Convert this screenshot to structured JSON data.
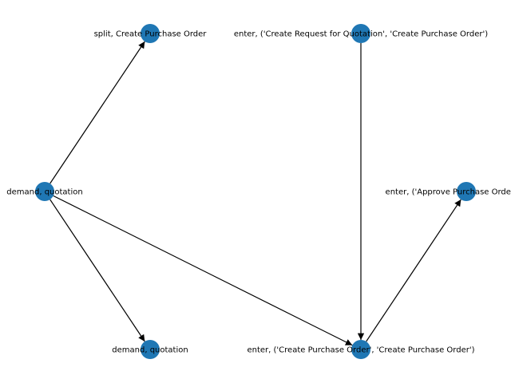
{
  "graph": {
    "nodes": [
      {
        "id": "n1",
        "label": "split, Create Purchase Order"
      },
      {
        "id": "n2",
        "label": "enter, ('Create Request for Quotation', 'Create Purchase Order')"
      },
      {
        "id": "n3",
        "label": "demand, quotation"
      },
      {
        "id": "n4",
        "label": "enter, ('Approve Purchase Order', 'Appro"
      },
      {
        "id": "n5",
        "label": "demand, quotation"
      },
      {
        "id": "n6",
        "label": "enter, ('Create Purchase Order', 'Create Purchase Order')"
      }
    ],
    "edges": [
      {
        "from": "n3",
        "to": "n1"
      },
      {
        "from": "n3",
        "to": "n5"
      },
      {
        "from": "n3",
        "to": "n6"
      },
      {
        "from": "n2",
        "to": "n6"
      },
      {
        "from": "n6",
        "to": "n4"
      }
    ]
  },
  "colors": {
    "node_fill": "#1f77b4",
    "edge": "#000000",
    "label": "#000000",
    "background": "#ffffff"
  }
}
